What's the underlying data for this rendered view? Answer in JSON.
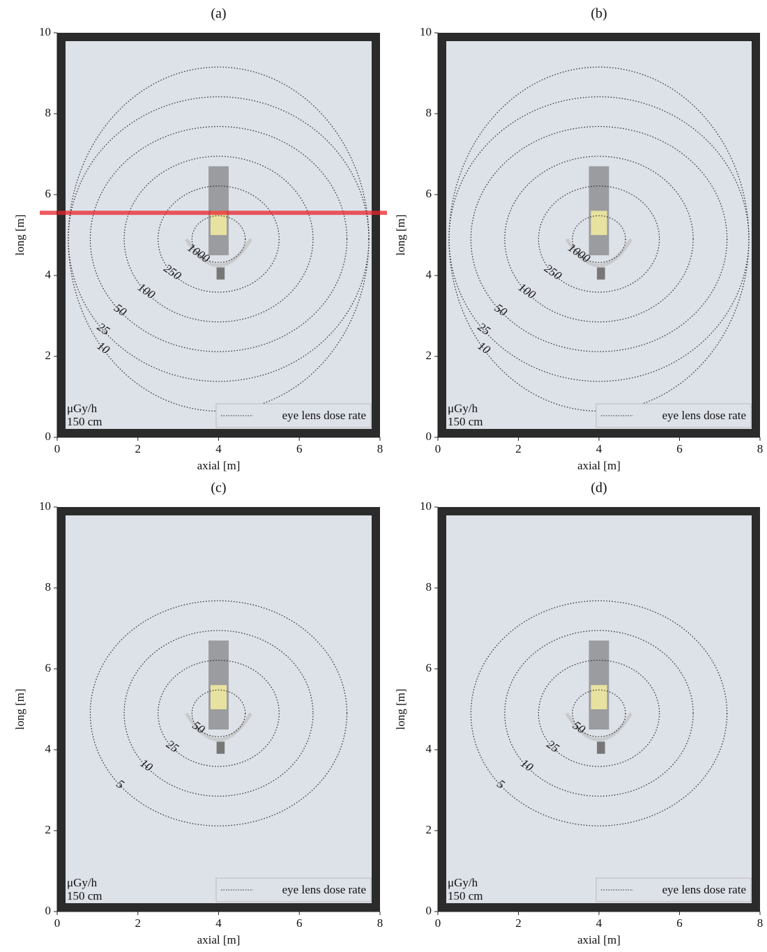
{
  "chart_data": [
    {
      "type": "contour",
      "title": "(a)",
      "x_label": "axial [m]",
      "y_label": "long [m]",
      "xlim": [
        0,
        8
      ],
      "ylim": [
        0,
        10
      ],
      "xticks": [
        0,
        2,
        4,
        6,
        8
      ],
      "yticks": [
        0,
        2,
        4,
        6,
        8,
        10
      ],
      "contour_levels": [
        1000,
        250,
        100,
        50,
        25,
        10
      ],
      "unit": "μGy/h",
      "height": "150 cm",
      "legend": "eye lens dose rate",
      "highlight_y": 5.55,
      "highlight_color": "#e8242c"
    },
    {
      "type": "contour",
      "title": "(b)",
      "x_label": "axial [m]",
      "y_label": "long [m]",
      "xlim": [
        0,
        8
      ],
      "ylim": [
        0,
        10
      ],
      "xticks": [
        0,
        2,
        4,
        6,
        8
      ],
      "yticks": [
        0,
        2,
        4,
        6,
        8,
        10
      ],
      "contour_levels": [
        1000,
        250,
        100,
        50,
        25,
        10
      ],
      "unit": "μGy/h",
      "height": "150 cm",
      "legend": "eye lens dose rate"
    },
    {
      "type": "contour",
      "title": "(c)",
      "x_label": "axial [m]",
      "y_label": "long [m]",
      "xlim": [
        0,
        8
      ],
      "ylim": [
        0,
        10
      ],
      "xticks": [
        0,
        2,
        4,
        6,
        8
      ],
      "yticks": [
        0,
        2,
        4,
        6,
        8,
        10
      ],
      "contour_levels": [
        50,
        25,
        10,
        5
      ],
      "unit": "μGy/h",
      "height": "150 cm",
      "legend": "eye lens dose rate"
    },
    {
      "type": "contour",
      "title": "(d)",
      "x_label": "axial [m]",
      "y_label": "long [m]",
      "xlim": [
        0,
        8
      ],
      "ylim": [
        0,
        10
      ],
      "xticks": [
        0,
        2,
        4,
        6,
        8
      ],
      "yticks": [
        0,
        2,
        4,
        6,
        8,
        10
      ],
      "contour_levels": [
        50,
        25,
        10,
        5
      ],
      "unit": "μGy/h",
      "height": "150 cm",
      "legend": "eye lens dose rate"
    }
  ]
}
